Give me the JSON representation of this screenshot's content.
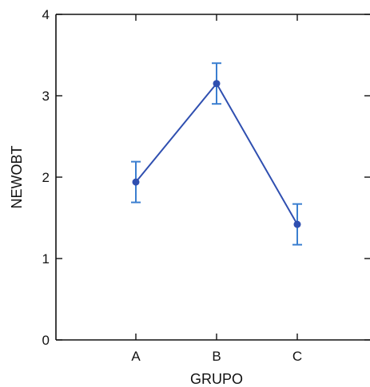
{
  "chart_data": {
    "type": "line",
    "xlabel": "GRUPO",
    "ylabel": "NEWOBT",
    "categories": [
      "A",
      "B",
      "C"
    ],
    "ylim": [
      0,
      4
    ],
    "yticks": [
      0,
      1,
      2,
      3,
      4
    ],
    "grid": false,
    "series": [
      {
        "values": [
          1.94,
          3.15,
          1.42
        ],
        "error_low": [
          1.69,
          2.9,
          1.17
        ],
        "error_high": [
          2.19,
          3.4,
          1.67
        ]
      }
    ]
  },
  "colors": {
    "series": "#2f4fb0",
    "errorbar": "#3b7fd0",
    "axis": "#111111"
  }
}
